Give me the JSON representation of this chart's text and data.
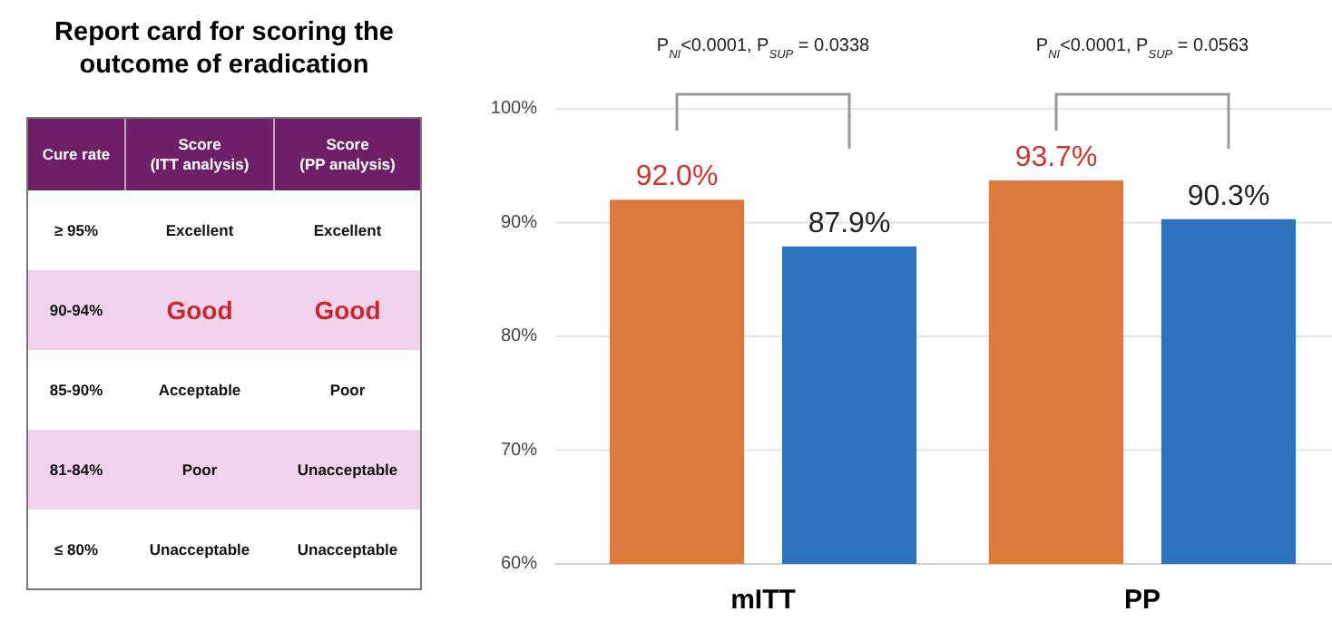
{
  "chart_data": [
    {
      "type": "other",
      "title": "Report card for scoring the outcome of eradication",
      "annotations": [
        "Cure rate",
        "Score\n(ITT analysis)",
        "Score\n(PP analysis)",
        "≥ 95%",
        "Excellent",
        "Excellent",
        "90-94%",
        "Good",
        "Good",
        "85-90%",
        "Acceptable",
        "Poor",
        "81-84%",
        "Poor",
        "Unacceptable",
        "≤ 80%",
        "Unacceptable",
        "Unacceptable"
      ]
    },
    {
      "type": "bar",
      "categories": [
        "mITT",
        "PP"
      ],
      "series": [
        {
          "color": "#dc7a3c",
          "values": [
            92.0,
            93.7
          ],
          "value_labels": [
            "92.0%",
            "93.7%"
          ]
        },
        {
          "color": "#2c72bd",
          "values": [
            87.9,
            90.3
          ],
          "value_labels": [
            "87.9%",
            "90.3%"
          ]
        }
      ],
      "ylim": [
        60,
        100
      ],
      "yticks": [
        {
          "value": 60,
          "label": "60%"
        },
        {
          "value": 70,
          "label": "70%"
        },
        {
          "value": 80,
          "label": "80%"
        },
        {
          "value": 90,
          "label": "90%"
        },
        {
          "value": 100,
          "label": "100%"
        }
      ],
      "grid": "y",
      "annotations": [
        "P$_{NI}$<0.0001, P$_{SUP}$ = 0.0338",
        "P$_{NI}$<0.0001, P$_{SUP}$ = 0.0563"
      ]
    }
  ]
}
